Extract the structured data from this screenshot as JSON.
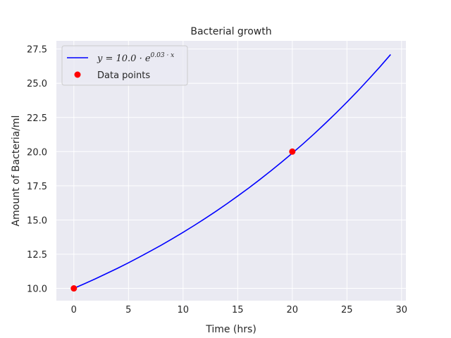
{
  "chart_data": {
    "type": "line",
    "title": "Bacterial growth",
    "xlabel": "Time (hrs)",
    "ylabel": "Amount of Bacteria/ml",
    "xlim": [
      -1.6,
      30.4
    ],
    "ylim": [
      9.1,
      28.1
    ],
    "x_ticks": [
      0,
      5,
      10,
      15,
      20,
      25,
      30
    ],
    "y_ticks": [
      10.0,
      12.5,
      15.0,
      17.5,
      20.0,
      22.5,
      25.0,
      27.5
    ],
    "grid": true,
    "legend_position": "top-left",
    "series": [
      {
        "name": "y = 10.0 · e^(0.03 · x)",
        "legend_parts": {
          "prefix": "y = 10.0 · ",
          "base": "e",
          "exponent": "0.03 · x"
        },
        "kind": "line",
        "color": "#0000ff",
        "x": [
          0,
          1,
          2,
          3,
          4,
          5,
          6,
          7,
          8,
          9,
          10,
          11,
          12,
          13,
          14,
          15,
          16,
          17,
          18,
          19,
          20,
          21,
          22,
          23,
          24,
          25,
          26,
          27,
          28,
          29
        ],
        "y": [
          10.0,
          10.35,
          10.71,
          11.09,
          11.47,
          11.87,
          12.29,
          12.72,
          13.16,
          13.62,
          14.1,
          14.59,
          15.1,
          15.63,
          16.18,
          16.75,
          17.33,
          17.94,
          18.57,
          19.22,
          19.89,
          20.58,
          21.3,
          22.05,
          22.82,
          23.62,
          24.44,
          25.3,
          26.18,
          27.1
        ]
      },
      {
        "name": "Data points",
        "kind": "scatter",
        "color": "#ff0000",
        "x": [
          0,
          20
        ],
        "y": [
          10.0,
          20.0
        ]
      }
    ]
  },
  "colors": {
    "plot_background": "#eaeaf2",
    "grid": "#ffffff",
    "text": "#262626",
    "line": "#0000ff",
    "points": "#ff0000"
  }
}
